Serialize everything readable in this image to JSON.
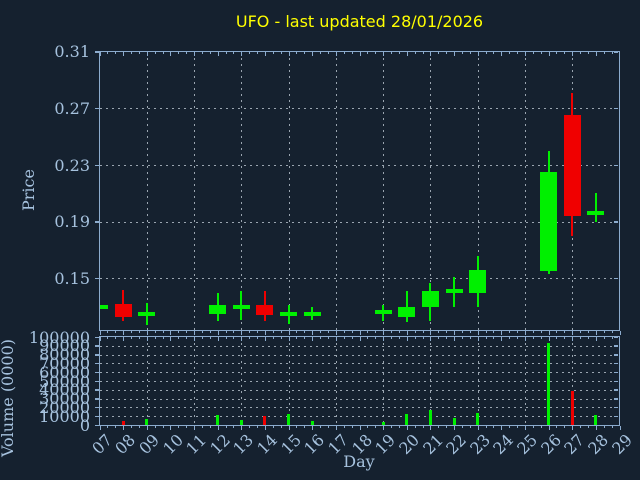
{
  "colors": {
    "background": "#15212f",
    "axis": "#8cacce",
    "tick_text": "#a6c2de",
    "grid": "#9aa5b0",
    "title": "#ffff00",
    "candle_up": "#00f000",
    "candle_down": "#f00000"
  },
  "chart_data": {
    "type": "candlestick",
    "title": "UFO - last updated 28/01/2026",
    "xlabel": "Day",
    "x_ticks": [
      "07",
      "08",
      "09",
      "10",
      "11",
      "12",
      "13",
      "14",
      "15",
      "16",
      "17",
      "18",
      "19",
      "20",
      "21",
      "22",
      "23",
      "24",
      "25",
      "26",
      "27",
      "28",
      "29"
    ],
    "x_grid_days": [
      "09",
      "11",
      "13",
      "15",
      "17",
      "19",
      "21",
      "23",
      "25",
      "27",
      "29"
    ],
    "grid": "dashed",
    "price_panel": {
      "ylabel": "Price",
      "y_ticks": [
        {
          "label": "0.31",
          "value": 0.31
        },
        {
          "label": "0.27",
          "value": 0.27
        },
        {
          "label": "0.23",
          "value": 0.23
        },
        {
          "label": "0.19",
          "value": 0.19
        },
        {
          "label": "0.15",
          "value": 0.15
        }
      ],
      "y_range": [
        0.1135,
        0.31
      ]
    },
    "volume_panel": {
      "ylabel": "Volume (0000)",
      "y_ticks": [
        {
          "label": "100000",
          "value": 100000
        },
        {
          "label": "90000",
          "value": 90000
        },
        {
          "label": "80000",
          "value": 80000
        },
        {
          "label": "70000",
          "value": 70000
        },
        {
          "label": "60000",
          "value": 60000
        },
        {
          "label": "50000",
          "value": 50000
        },
        {
          "label": "40000",
          "value": 40000
        },
        {
          "label": "30000",
          "value": 30000
        },
        {
          "label": "20000",
          "value": 20000
        },
        {
          "label": "10000",
          "value": 10000
        },
        {
          "label": "0",
          "value": 0
        }
      ],
      "y_range": [
        0,
        100000
      ]
    },
    "candles": [
      {
        "day": "07",
        "open": 0.13,
        "high": 0.13,
        "low": 0.13,
        "close": 0.13,
        "volume": 0
      },
      {
        "day": "08",
        "open": 0.132,
        "high": 0.142,
        "low": 0.12,
        "close": 0.123,
        "volume": 4000
      },
      {
        "day": "09",
        "open": 0.125,
        "high": 0.133,
        "low": 0.117,
        "close": 0.125,
        "volume": 6500
      },
      {
        "day": "12",
        "open": 0.125,
        "high": 0.14,
        "low": 0.12,
        "close": 0.131,
        "volume": 11000
      },
      {
        "day": "13",
        "open": 0.129,
        "high": 0.141,
        "low": 0.121,
        "close": 0.13,
        "volume": 5500
      },
      {
        "day": "14",
        "open": 0.131,
        "high": 0.141,
        "low": 0.12,
        "close": 0.124,
        "volume": 10000
      },
      {
        "day": "15",
        "open": 0.124,
        "high": 0.131,
        "low": 0.118,
        "close": 0.125,
        "volume": 13000
      },
      {
        "day": "16",
        "open": 0.124,
        "high": 0.13,
        "low": 0.121,
        "close": 0.125,
        "volume": 4500
      },
      {
        "day": "19",
        "open": 0.125,
        "high": 0.131,
        "low": 0.12,
        "close": 0.126,
        "volume": 3500
      },
      {
        "day": "20",
        "open": 0.123,
        "high": 0.141,
        "low": 0.119,
        "close": 0.13,
        "volume": 12000
      },
      {
        "day": "21",
        "open": 0.13,
        "high": 0.147,
        "low": 0.12,
        "close": 0.141,
        "volume": 17000
      },
      {
        "day": "22",
        "open": 0.14,
        "high": 0.151,
        "low": 0.13,
        "close": 0.141,
        "volume": 7500
      },
      {
        "day": "23",
        "open": 0.14,
        "high": 0.166,
        "low": 0.13,
        "close": 0.156,
        "volume": 13500
      },
      {
        "day": "26",
        "open": 0.155,
        "high": 0.24,
        "low": 0.153,
        "close": 0.225,
        "volume": 93000
      },
      {
        "day": "27",
        "open": 0.265,
        "high": 0.281,
        "low": 0.18,
        "close": 0.194,
        "volume": 39000
      },
      {
        "day": "28",
        "open": 0.194,
        "high": 0.21,
        "low": 0.19,
        "close": 0.196,
        "volume": 11000
      }
    ]
  }
}
